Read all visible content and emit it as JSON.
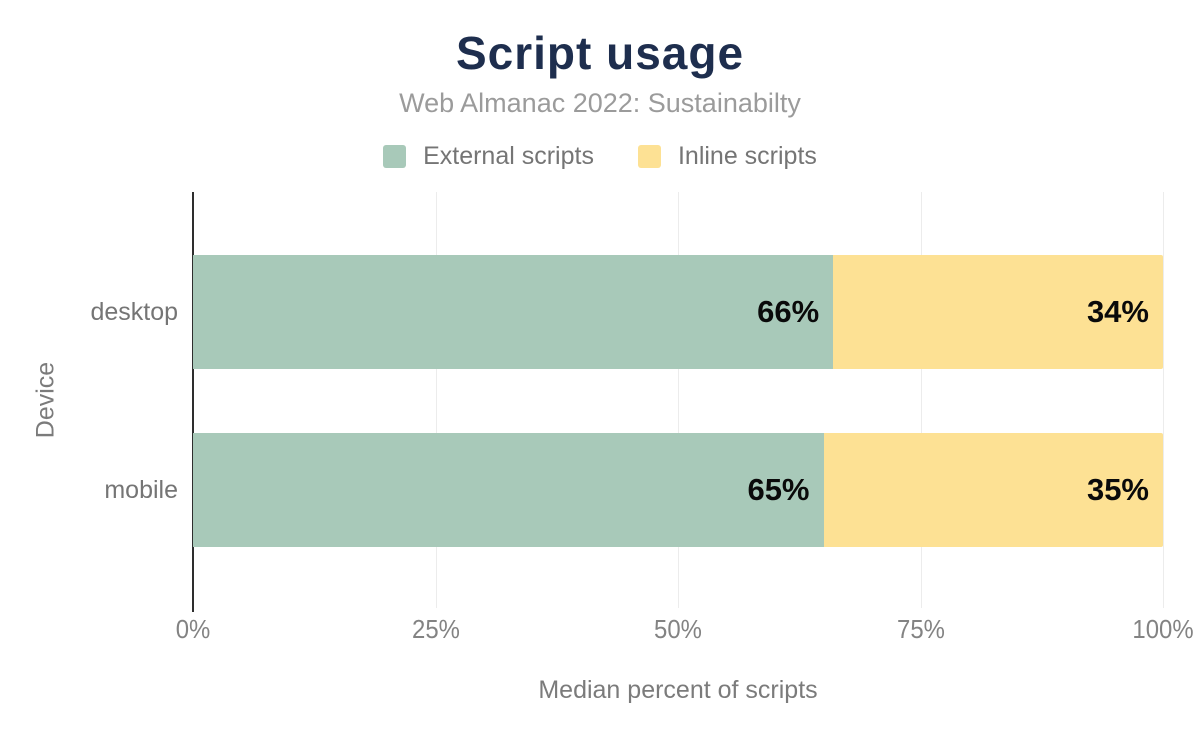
{
  "header": {
    "title": "Script usage",
    "subtitle": "Web Almanac 2022: Sustainabilty"
  },
  "legend": {
    "position": "top",
    "items": [
      {
        "label": "External scripts",
        "color": "#a8c9b9"
      },
      {
        "label": "Inline scripts",
        "color": "#fde194"
      }
    ]
  },
  "chart_data": {
    "type": "bar",
    "stacked": true,
    "orientation": "horizontal",
    "title": "Script usage",
    "subtitle": "Web Almanac 2022: Sustainabilty",
    "categories": [
      "desktop",
      "mobile"
    ],
    "series": [
      {
        "name": "External scripts",
        "color": "#a8c9b9",
        "values": [
          66,
          65
        ]
      },
      {
        "name": "Inline scripts",
        "color": "#fde194",
        "values": [
          34,
          35
        ]
      }
    ],
    "data_labels": [
      [
        "66%",
        "34%"
      ],
      [
        "65%",
        "35%"
      ]
    ],
    "xlabel": "Median percent of scripts",
    "ylabel": "Device",
    "xlim": [
      0,
      100
    ],
    "x_ticks": [
      "0%",
      "25%",
      "50%",
      "75%",
      "100%"
    ],
    "grid": "vertical-light",
    "legend_position": "top"
  },
  "colors": {
    "title": "#1e2e4e",
    "subtitle": "#9b9b9b",
    "axis_text": "#7b7b7b",
    "tick_text": "#838383",
    "data_label": "#0a0a0a",
    "gridline": "#ececec",
    "axis_spine": "#2e2e2e",
    "background": "#ffffff"
  }
}
